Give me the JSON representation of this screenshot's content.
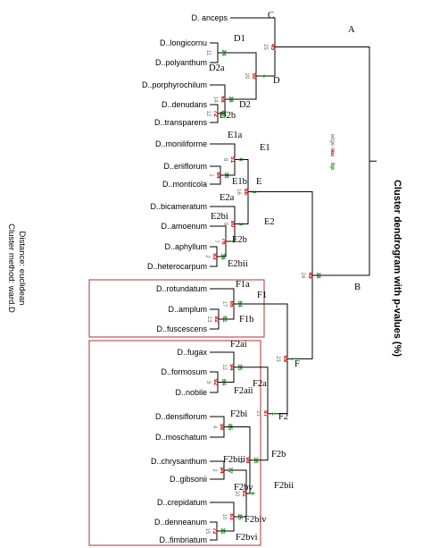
{
  "title": "Cluster dendrogram with p-values (%)",
  "legend": {
    "au": "au",
    "bp": "bp",
    "edge": "edge #"
  },
  "distance_label": "Distance: euclidean",
  "method_label": "Cluster method: ward.D",
  "colors": {
    "au": "#c00000",
    "bp": "#138a13",
    "edge": "#666666",
    "box": "#b03030"
  },
  "leaves": [
    "D. anceps",
    "D..longicornu",
    "D..polyanthum",
    "D..porphyrochilum",
    "D..denudans",
    "D..transparens",
    "D..moniliforme",
    "D..eriiflorum",
    "D..monticola",
    "D..bicameratum",
    "D..amoenum",
    "D..aphyllum",
    "D..heterocarpum",
    "D..rotundatum",
    "D..amplum",
    "D..fuscescens",
    "D..fugax",
    "D..formosum",
    "D..nobile",
    "D..densiflorum",
    "D..moschatum",
    "D..chrysanthum",
    "D..gibsonii",
    "D..crepidatum",
    "D..denneanum",
    "D..fimbriatum"
  ],
  "clusters": {
    "A": "A",
    "B": "B",
    "C": "C",
    "D": "D",
    "D1": "D1",
    "D2": "D2",
    "D2a": "D2a",
    "D2b": "D2b",
    "E": "E",
    "E1": "E1",
    "E1a": "E1a",
    "E1b": "E1b",
    "E2": "E2",
    "E2a": "E2a",
    "E2bi": "E2bi",
    "E2b": "E2b",
    "E2bii": "E2bii",
    "F": "F",
    "F1": "F1",
    "F1a": "F1a",
    "F1b": "F1b",
    "F2": "F2",
    "F2a": "F2a",
    "F2ai": "F2ai",
    "F2aii": "F2aii",
    "F2b": "F2b",
    "F2bi": "F2bi",
    "F2biii": "F2biii",
    "F2bii": "F2bii",
    "F2bv": "F2bv",
    "F2biv": "F2biv",
    "F2bvi": "F2bvi"
  },
  "nodes": [
    {
      "id": "n_D1",
      "au": "",
      "bp": "24",
      "edge": "11"
    },
    {
      "id": "n_C",
      "au": "45",
      "bp": "",
      "edge": "25"
    },
    {
      "id": "n_D2b",
      "au": "72",
      "bp": "26",
      "edge": "12"
    },
    {
      "id": "n_D2",
      "au": "68",
      "bp": "18",
      "edge": "14"
    },
    {
      "id": "n_D",
      "au": "50",
      "bp": "7",
      "edge": "20"
    },
    {
      "id": "n_CD",
      "au": "19",
      "bp": "",
      "edge": "22"
    },
    {
      "id": "n_E1b",
      "au": "84",
      "bp": "36",
      "edge": "1"
    },
    {
      "id": "n_E1",
      "au": "51",
      "bp": "6",
      "edge": "8"
    },
    {
      "id": "n_E2bii",
      "au": "83",
      "bp": "34",
      "edge": "2"
    },
    {
      "id": "n_E2b",
      "au": "76",
      "bp": "7",
      "edge": "7"
    },
    {
      "id": "n_E2",
      "au": "80",
      "bp": "3",
      "edge": "9"
    },
    {
      "id": "n_E",
      "au": "66",
      "bp": "3",
      "edge": "16"
    },
    {
      "id": "n_B",
      "au": "49",
      "bp": "18",
      "edge": "24"
    },
    {
      "id": "n_F1b",
      "au": "92",
      "bp": "61",
      "edge": "13"
    },
    {
      "id": "n_F1",
      "au": "86",
      "bp": "64",
      "edge": "17"
    },
    {
      "id": "n_F2aii",
      "au": "92",
      "bp": "64",
      "edge": "3"
    },
    {
      "id": "n_F2a",
      "au": "94",
      "bp": "35",
      "edge": "12"
    },
    {
      "id": "n_F2bi",
      "au": "98",
      "bp": "85",
      "edge": "4"
    },
    {
      "id": "n_F2biii",
      "au": "94",
      "bp": "77",
      "edge": "2"
    },
    {
      "id": "n_F2bv",
      "au": "83",
      "bp": "15",
      "edge": "10"
    },
    {
      "id": "n_F2biv",
      "au": "72",
      "bp": "31",
      "edge": "15"
    },
    {
      "id": "n_F2bii",
      "au": "81",
      "bp": "6",
      "edge": "10"
    },
    {
      "id": "n_F2b",
      "au": "98",
      "bp": "16",
      "edge": "19"
    },
    {
      "id": "n_F2",
      "au": "87",
      "bp": "1",
      "edge": "21"
    },
    {
      "id": "n_F",
      "au": "69",
      "bp": "1",
      "edge": "23"
    }
  ]
}
